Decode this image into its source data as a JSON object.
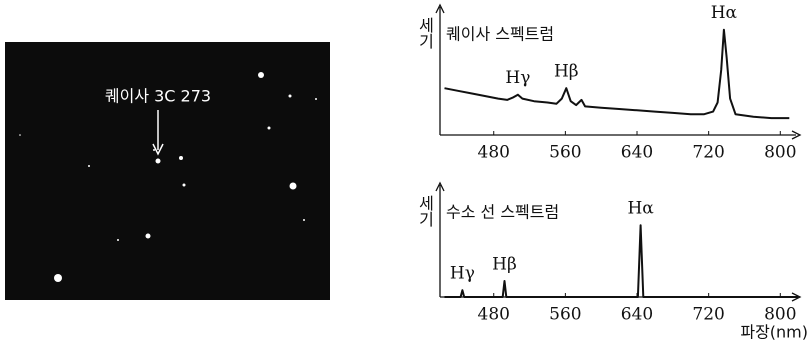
{
  "photo": {
    "label": "퀘이사 3C 273"
  },
  "chart_data": [
    {
      "type": "line",
      "title": "퀘이사 스펙트럼",
      "ylabel": "세기",
      "series": [
        {
          "name": "퀘이사 스펙트럼",
          "color": "#111111",
          "x": [
            425,
            440,
            455,
            470,
            485,
            495,
            502,
            507,
            512,
            525,
            540,
            550,
            556,
            561,
            566,
            572,
            578,
            582,
            600,
            620,
            640,
            660,
            680,
            700,
            715,
            725,
            730,
            734,
            737,
            740,
            744,
            750,
            770,
            790,
            810
          ],
          "values": [
            36,
            34,
            32,
            30,
            28,
            27,
            29,
            31,
            28,
            26,
            25,
            24,
            28,
            36,
            26,
            23,
            27,
            22,
            21,
            20,
            19,
            18,
            17,
            16,
            16,
            18,
            25,
            50,
            81,
            60,
            28,
            16,
            14,
            13,
            13
          ]
        }
      ],
      "annotations": [
        {
          "label": "Hγ",
          "x": 507
        },
        {
          "label": "Hβ",
          "x": 561
        },
        {
          "label": "Hα",
          "x": 737
        }
      ],
      "xlim": [
        420,
        822
      ],
      "ylim": [
        0,
        100
      ],
      "xticks": [
        480,
        560,
        640,
        720,
        800
      ]
    },
    {
      "type": "line",
      "title": "수소 선 스펙트럼",
      "ylabel": "세기",
      "xlabel": "파장(nm)",
      "series": [
        {
          "name": "수소 선 스펙트럼",
          "color": "#111111",
          "x": [
            425,
            440,
            443,
            445,
            447,
            490,
            492,
            494,
            641,
            644,
            647,
            820
          ],
          "values": [
            0,
            0,
            0,
            6,
            0,
            0,
            14,
            0,
            0,
            63,
            0,
            0
          ]
        }
      ],
      "annotations": [
        {
          "label": "Hγ",
          "x": 445
        },
        {
          "label": "Hβ",
          "x": 492
        },
        {
          "label": "Hα",
          "x": 644
        }
      ],
      "xlim": [
        420,
        822
      ],
      "ylim": [
        0,
        100
      ],
      "xticks": [
        480,
        560,
        640,
        720,
        800
      ]
    }
  ]
}
